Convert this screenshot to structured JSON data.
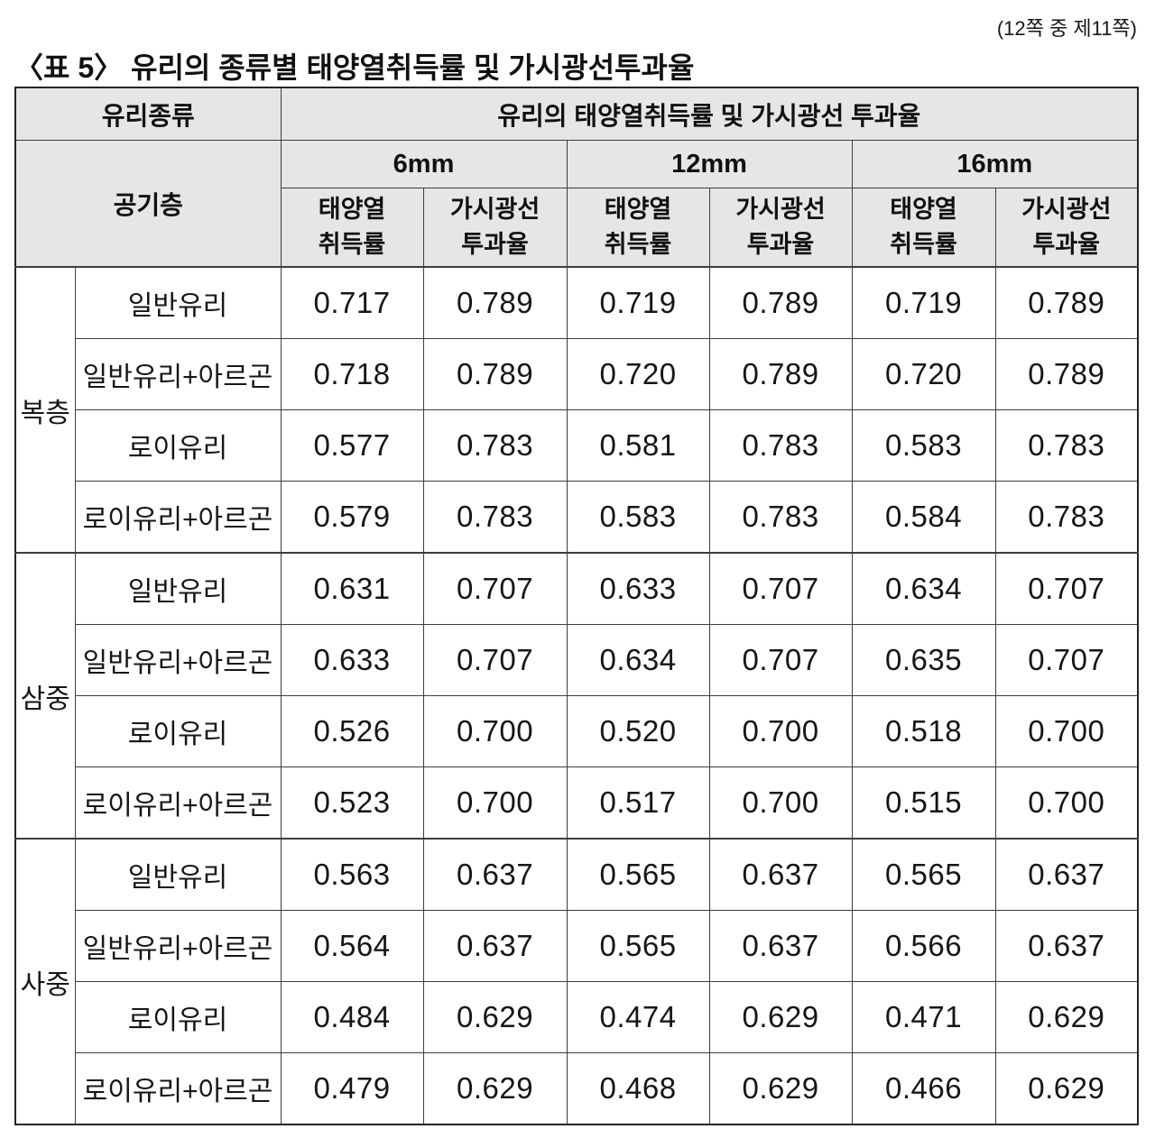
{
  "page": {
    "page_indicator": "(12쪽 중 제11쪽)",
    "title": "〈표 5〉 유리의 종류별 태양열취득률 및 가시광선투과율"
  },
  "colors": {
    "header_bg": "#e6e6e6",
    "border": "#3d3d3d",
    "text": "#161616"
  },
  "table": {
    "header": {
      "glass_type_label": "유리종류",
      "air_layer_label": "공기층",
      "main_header": "유리의 태양열취득률 및 가시광선 투과율",
      "thickness_groups": [
        "6mm",
        "12mm",
        "16mm"
      ],
      "sub_headers": [
        "태양열\n취득률",
        "가시광선\n투과율"
      ]
    },
    "groups": [
      {
        "name": "복층",
        "rows": [
          {
            "type": "일반유리",
            "values": [
              "0.717",
              "0.789",
              "0.719",
              "0.789",
              "0.719",
              "0.789"
            ]
          },
          {
            "type": "일반유리+아르곤",
            "values": [
              "0.718",
              "0.789",
              "0.720",
              "0.789",
              "0.720",
              "0.789"
            ]
          },
          {
            "type": "로이유리",
            "values": [
              "0.577",
              "0.783",
              "0.581",
              "0.783",
              "0.583",
              "0.783"
            ]
          },
          {
            "type": "로이유리+아르곤",
            "values": [
              "0.579",
              "0.783",
              "0.583",
              "0.783",
              "0.584",
              "0.783"
            ]
          }
        ]
      },
      {
        "name": "삼중",
        "rows": [
          {
            "type": "일반유리",
            "values": [
              "0.631",
              "0.707",
              "0.633",
              "0.707",
              "0.634",
              "0.707"
            ]
          },
          {
            "type": "일반유리+아르곤",
            "values": [
              "0.633",
              "0.707",
              "0.634",
              "0.707",
              "0.635",
              "0.707"
            ]
          },
          {
            "type": "로이유리",
            "values": [
              "0.526",
              "0.700",
              "0.520",
              "0.700",
              "0.518",
              "0.700"
            ]
          },
          {
            "type": "로이유리+아르곤",
            "values": [
              "0.523",
              "0.700",
              "0.517",
              "0.700",
              "0.515",
              "0.700"
            ]
          }
        ]
      },
      {
        "name": "사중",
        "rows": [
          {
            "type": "일반유리",
            "values": [
              "0.563",
              "0.637",
              "0.565",
              "0.637",
              "0.565",
              "0.637"
            ]
          },
          {
            "type": "일반유리+아르곤",
            "values": [
              "0.564",
              "0.637",
              "0.565",
              "0.637",
              "0.566",
              "0.637"
            ]
          },
          {
            "type": "로이유리",
            "values": [
              "0.484",
              "0.629",
              "0.474",
              "0.629",
              "0.471",
              "0.629"
            ]
          },
          {
            "type": "로이유리+아르곤",
            "values": [
              "0.479",
              "0.629",
              "0.468",
              "0.629",
              "0.466",
              "0.629"
            ]
          }
        ]
      }
    ]
  }
}
